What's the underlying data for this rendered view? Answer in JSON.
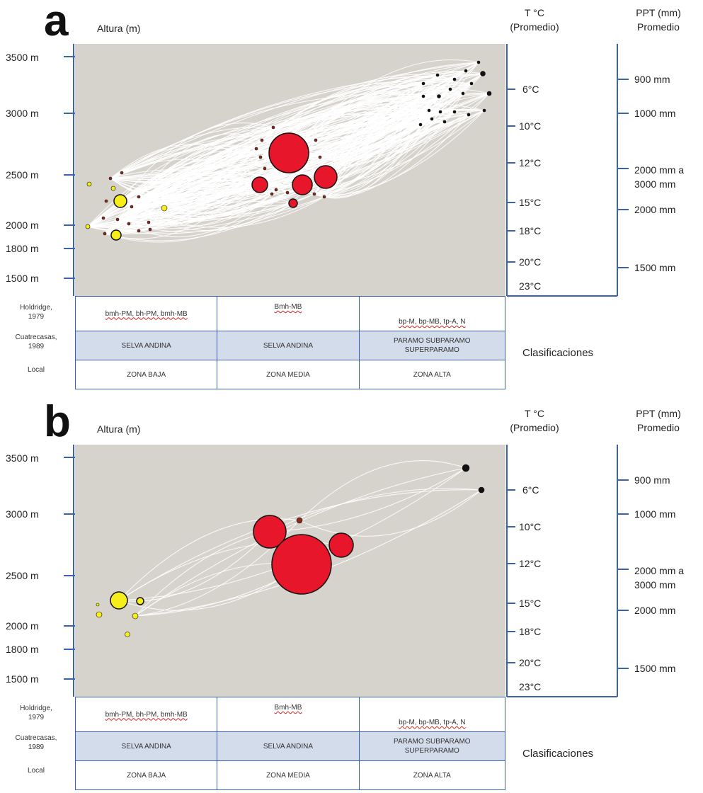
{
  "panels": [
    {
      "letter": "a",
      "y_title": "Altura (m)",
      "t_title": "T °C\n(Promedio)",
      "ppt_title": "PPT (mm)\nPromedio",
      "altitude_ticks": [
        "3500 m",
        "3000 m",
        "2500 m",
        "2000 m",
        "1800 m",
        "1500 m"
      ],
      "temp_ticks": [
        "6°C",
        "10°C",
        "12°C",
        "15°C",
        "18°C",
        "20°C",
        "23°C"
      ],
      "ppt_ticks": [
        "900 mm",
        "1000 mm",
        "2000 mm a\n3000 mm",
        "2000 mm",
        "1500 mm"
      ],
      "table": {
        "row_labels": [
          "Holdridge,\n1979",
          "Cuatrecasas,\n1989",
          "Local"
        ],
        "rows": [
          [
            "bmh-PM, bh-PM, bmh-MB",
            "Bmh-MB",
            "bp-M, bp-MB, tp-A, N"
          ],
          [
            "SELVA ANDINA",
            "SELVA ANDINA",
            "PARAMO SUBPARAMO\nSUPERPARAMO"
          ],
          [
            "ZONA BAJA",
            "ZONA MEDIA",
            "ZONA ALTA"
          ]
        ]
      },
      "classifications_label": "Clasificaciones",
      "network": {
        "nodes_low": 18,
        "nodes_mid": 17,
        "nodes_high": 20
      }
    },
    {
      "letter": "b",
      "y_title": "Altura (m)",
      "t_title": "T °C\n(Promedio)",
      "ppt_title": "PPT (mm)\nPromedio",
      "altitude_ticks": [
        "3500 m",
        "3000 m",
        "2500 m",
        "2000 m",
        "1800 m",
        "1500 m"
      ],
      "temp_ticks": [
        "6°C",
        "10°C",
        "12°C",
        "15°C",
        "18°C",
        "20°C",
        "23°C"
      ],
      "ppt_ticks": [
        "900 mm",
        "1000 mm",
        "2000 mm a\n3000 mm",
        "2000 mm",
        "1500 mm"
      ],
      "table": {
        "row_labels": [
          "Holdridge,\n1979",
          "Cuatrecasas,\n1989",
          "Local"
        ],
        "rows": [
          [
            "bmh-PM, bh-PM, bmh-MB",
            "Bmh-MB",
            "bp-M, bp-MB, tp-A, N"
          ],
          [
            "SELVA ANDINA",
            "SELVA ANDINA",
            "PARAMO SUBPARAMO\nSUPERPARAMO"
          ],
          [
            "ZONA BAJA",
            "ZONA MEDIA",
            "ZONA ALTA"
          ]
        ]
      },
      "classifications_label": "Clasificaciones",
      "network": {
        "nodes_low": 6,
        "nodes_mid": 4,
        "nodes_high": 2
      }
    }
  ],
  "colors": {
    "plot_bg": "#d6d2cc",
    "axis_blue": "#3a62b0",
    "low_zone_node": "#f5ee1a",
    "mid_zone_node": "#e8162a",
    "high_zone_node": "#111111",
    "small_node": "#8b2a1c",
    "edge": "#ffffff",
    "table_shade": "#d3dcea"
  }
}
